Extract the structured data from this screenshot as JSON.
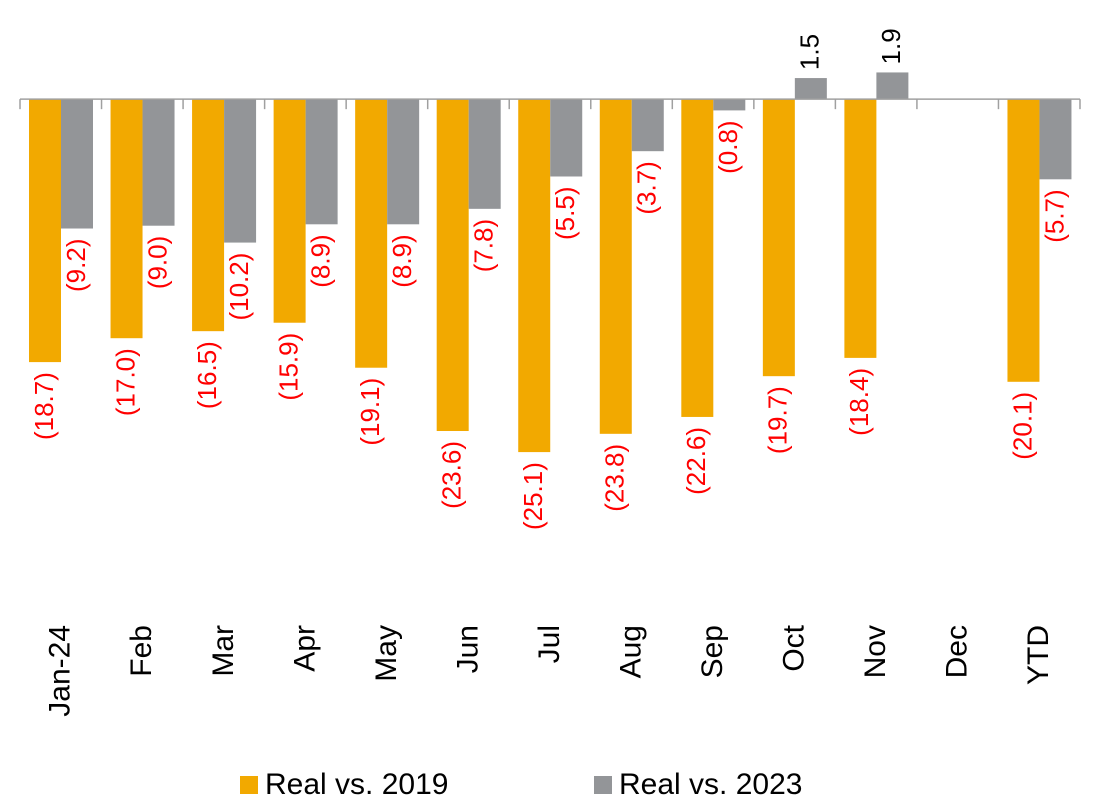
{
  "chart_data": {
    "type": "bar",
    "categories": [
      "Jan-24",
      "Feb",
      "Mar",
      "Apr",
      "May",
      "Jun",
      "Jul",
      "Aug",
      "Sep",
      "Oct",
      "Nov",
      "Dec",
      "YTD"
    ],
    "series": [
      {
        "name": "Real vs. 2019",
        "color": "#f2a900",
        "values": [
          -18.7,
          -17.0,
          -16.5,
          -15.9,
          -19.1,
          -23.6,
          -25.1,
          -23.8,
          -22.6,
          -19.7,
          -18.4,
          null,
          -20.1
        ],
        "value_labels": [
          "(18.7)",
          "(17.0)",
          "(16.5)",
          "(15.9)",
          "(19.1)",
          "(23.6)",
          "(25.1)",
          "(23.8)",
          "(22.6)",
          "(19.7)",
          "(18.4)",
          null,
          "(20.1)"
        ]
      },
      {
        "name": "Real vs. 2023",
        "color": "#939598",
        "values": [
          -9.2,
          -9.0,
          -10.2,
          -8.9,
          -8.9,
          -7.8,
          -5.5,
          -3.7,
          -0.8,
          1.5,
          1.9,
          null,
          -5.7
        ],
        "value_labels": [
          "(9.2)",
          "(9.0)",
          "(10.2)",
          "(8.9)",
          "(8.9)",
          "(7.8)",
          "(5.5)",
          "(3.7)",
          "(0.8)",
          "1.5",
          "1.9",
          null,
          "(5.7)"
        ]
      }
    ],
    "ylim": [
      -30,
      2.5
    ]
  }
}
